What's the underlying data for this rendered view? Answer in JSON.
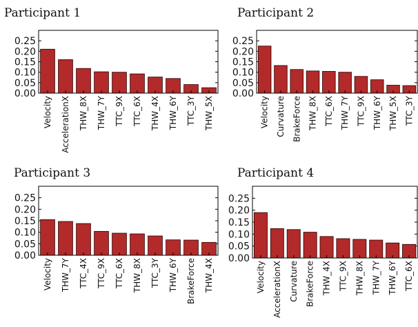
{
  "figure": {
    "bar_color": "#b22a2a"
  },
  "chart_data": [
    {
      "type": "bar",
      "title": "Participant 1",
      "categories": [
        "Velocity",
        "AccelerationX",
        "THW_8X",
        "THW_7Y",
        "TTC_9X",
        "TTC_6X",
        "THW_4X",
        "THW_6Y",
        "TTC_3Y",
        "THW_5X"
      ],
      "values": [
        0.21,
        0.16,
        0.118,
        0.102,
        0.1,
        0.092,
        0.077,
        0.07,
        0.041,
        0.026
      ],
      "ylim": [
        0,
        0.3
      ],
      "yticks": [
        "0.00",
        "0.05",
        "0.10",
        "0.15",
        "0.20",
        "0.25"
      ],
      "grid": false
    },
    {
      "type": "bar",
      "title": "Participant 2",
      "categories": [
        "Velocity",
        "Curvature",
        "BrakeForce",
        "THW_8X",
        "TTC_6X",
        "THW_7Y",
        "TTC_9X",
        "THW_6Y",
        "THW_5X",
        "TTC_3Y"
      ],
      "values": [
        0.225,
        0.132,
        0.113,
        0.106,
        0.104,
        0.1,
        0.08,
        0.064,
        0.038,
        0.036
      ],
      "ylim": [
        0,
        0.3
      ],
      "yticks": [
        "0.00",
        "0.05",
        "0.10",
        "0.15",
        "0.20",
        "0.25"
      ],
      "grid": false
    },
    {
      "type": "bar",
      "title": "Participant 3",
      "categories": [
        "Velocity",
        "THW_7Y",
        "TTC_4X",
        "TTC_9X",
        "TTC_6X",
        "THW_8X",
        "TTC_3Y",
        "THW_6Y",
        "BrakeForce",
        "THW_4X"
      ],
      "values": [
        0.155,
        0.147,
        0.138,
        0.104,
        0.096,
        0.093,
        0.084,
        0.067,
        0.066,
        0.056
      ],
      "ylim": [
        0,
        0.3
      ],
      "yticks": [
        "0.00",
        "0.05",
        "0.10",
        "0.15",
        "0.20",
        "0.25"
      ],
      "grid": false
    },
    {
      "type": "bar",
      "title": "Participant 4",
      "categories": [
        "Velocity",
        "AccelerationX",
        "Curvature",
        "BrakeForce",
        "THW_4X",
        "TTC_9X",
        "THW_8X",
        "THW_7Y",
        "THW_6Y",
        "TTC_6X"
      ],
      "values": [
        0.19,
        0.123,
        0.119,
        0.108,
        0.09,
        0.081,
        0.078,
        0.075,
        0.063,
        0.057
      ],
      "ylim": [
        0,
        0.3
      ],
      "yticks": [
        "0.00",
        "0.05",
        "0.10",
        "0.15",
        "0.20",
        "0.25"
      ],
      "grid": false
    }
  ]
}
